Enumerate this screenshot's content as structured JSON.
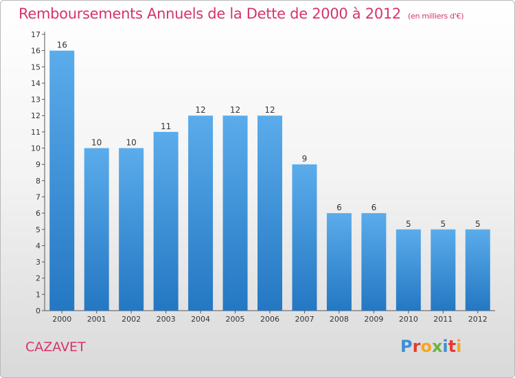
{
  "header": {
    "title": "Remboursements Annuels de la Dette de 2000 à 2012",
    "unit": "(en milliers d'€)"
  },
  "footer": {
    "place": "CAZAVET",
    "logo": "Proxiti"
  },
  "colors": {
    "bar": "#3a8fd8",
    "title": "#d6336c",
    "axis": "#333333"
  },
  "chart_data": {
    "type": "bar",
    "title": "Remboursements Annuels de la Dette de 2000 à 2012",
    "ylabel": "(en milliers d'€)",
    "xlabel": "",
    "categories": [
      "2000",
      "2001",
      "2002",
      "2003",
      "2004",
      "2005",
      "2006",
      "2007",
      "2008",
      "2009",
      "2010",
      "2011",
      "2012"
    ],
    "values": [
      16,
      10,
      10,
      11,
      12,
      12,
      12,
      9,
      6,
      6,
      5,
      5,
      5
    ],
    "ylim": [
      0,
      17
    ],
    "yticks": [
      0,
      1,
      2,
      3,
      4,
      5,
      6,
      7,
      8,
      9,
      10,
      11,
      12,
      13,
      14,
      15,
      16,
      17
    ],
    "grid": false,
    "data_labels": true
  }
}
